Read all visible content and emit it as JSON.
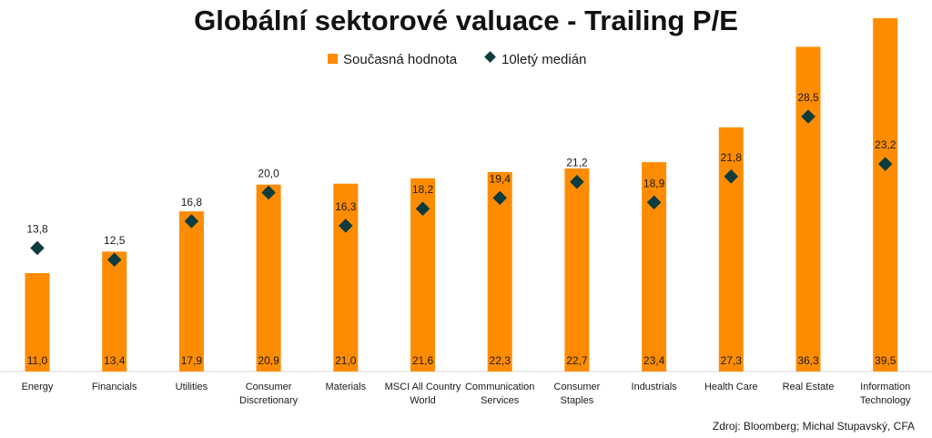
{
  "chart_data": {
    "type": "bar",
    "title": "Globální sektorové valuace - Trailing P/E",
    "categories": [
      [
        "Energy"
      ],
      [
        "Financials"
      ],
      [
        "Utilities"
      ],
      [
        "Consumer",
        "Discretionary"
      ],
      [
        "Materials"
      ],
      [
        "MSCI All Country",
        "World"
      ],
      [
        "Communication",
        "Services"
      ],
      [
        "Consumer",
        "Staples"
      ],
      [
        "Industrials"
      ],
      [
        "Health Care"
      ],
      [
        "Real Estate"
      ],
      [
        "Information",
        "Technology"
      ]
    ],
    "series": [
      {
        "name": "Současná hodnota",
        "mark": "bar",
        "color": "#FF8C00",
        "values": [
          11.0,
          13.4,
          17.9,
          20.9,
          21.0,
          21.6,
          22.3,
          22.7,
          23.4,
          27.3,
          36.3,
          39.5
        ],
        "labels": [
          "11,0",
          "13,4",
          "17,9",
          "20,9",
          "21,0",
          "21,6",
          "22,3",
          "22,7",
          "23,4",
          "27,3",
          "36,3",
          "39,5"
        ]
      },
      {
        "name": "10letý medián",
        "mark": "diamond",
        "color": "#0D3B3E",
        "values": [
          13.8,
          12.5,
          16.8,
          20.0,
          16.3,
          18.2,
          19.4,
          21.2,
          18.9,
          21.8,
          28.5,
          23.2
        ],
        "labels": [
          "13,8",
          "12,5",
          "16,8",
          "20,0",
          "16,3",
          "18,2",
          "19,4",
          "21,2",
          "18,9",
          "21,8",
          "28,5",
          "23,2"
        ]
      }
    ],
    "ylim": [
      0,
      40
    ],
    "grid": false,
    "legend": "top-center",
    "source": "Zdroj: Bloomberg; Michal Stupavský, CFA"
  }
}
